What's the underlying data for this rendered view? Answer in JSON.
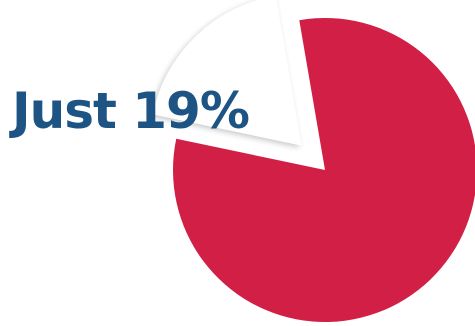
{
  "chart_data": {
    "type": "pie",
    "slices": [
      {
        "value": 19,
        "color": "#ffffff",
        "exploded": true
      },
      {
        "value": 81,
        "color": "#d11f46",
        "exploded": false
      }
    ]
  },
  "callout": {
    "text": "Just 19%",
    "color": "#1d5484"
  }
}
